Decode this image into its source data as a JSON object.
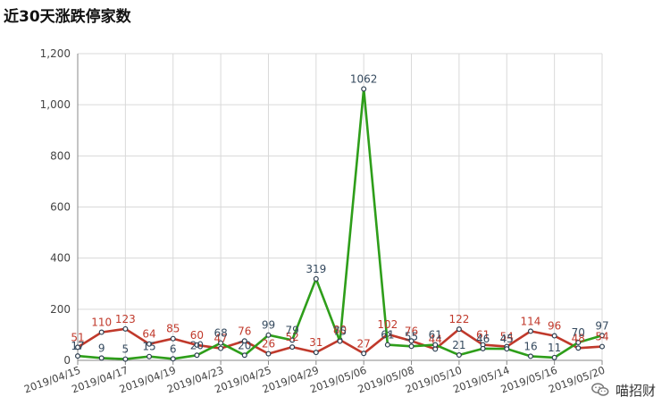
{
  "header": {
    "title": "近30天涨跌停家数"
  },
  "watermark": {
    "text": "喵招财"
  },
  "chart_data": {
    "type": "line",
    "title": "近30天涨跌停家数",
    "xlabel": "",
    "ylabel": "",
    "ylim": [
      0,
      1200
    ],
    "yticks": [
      0,
      200,
      400,
      600,
      800,
      1000,
      1200
    ],
    "ytick_labels": [
      "0",
      "200",
      "400",
      "600",
      "800",
      "1,000",
      "1,200"
    ],
    "grid": true,
    "categories": [
      "2019/04/15",
      "2019/04/16",
      "2019/04/17",
      "2019/04/18",
      "2019/04/19",
      "2019/04/22",
      "2019/04/23",
      "2019/04/24",
      "2019/04/25",
      "2019/04/26",
      "2019/04/29",
      "2019/04/30",
      "2019/05/06",
      "2019/05/07",
      "2019/05/08",
      "2019/05/09",
      "2019/05/10",
      "2019/05/13",
      "2019/05/14",
      "2019/05/15",
      "2019/05/16",
      "2019/05/17",
      "2019/05/20"
    ],
    "x_tick_labels": [
      "2019/04/15",
      "2019/04/17",
      "2019/04/19",
      "2019/04/23",
      "2019/04/25",
      "2019/04/29",
      "2019/05/06",
      "2019/05/08",
      "2019/05/10",
      "2019/05/14",
      "2019/05/16",
      "2019/05/20"
    ],
    "series": [
      {
        "name": "",
        "color": "#c0392b",
        "values": [
          51,
          110,
          123,
          64,
          85,
          60,
          47,
          76,
          26,
          52,
          31,
          80,
          27,
          102,
          76,
          44,
          122,
          61,
          54,
          114,
          96,
          48,
          54
        ]
      },
      {
        "name": "",
        "color": "#2e9e1a",
        "values": [
          17,
          9,
          5,
          15,
          6,
          20,
          68,
          20,
          99,
          79,
          319,
          75,
          1062,
          61,
          55,
          61,
          21,
          46,
          45,
          16,
          11,
          70,
          97
        ]
      }
    ]
  }
}
